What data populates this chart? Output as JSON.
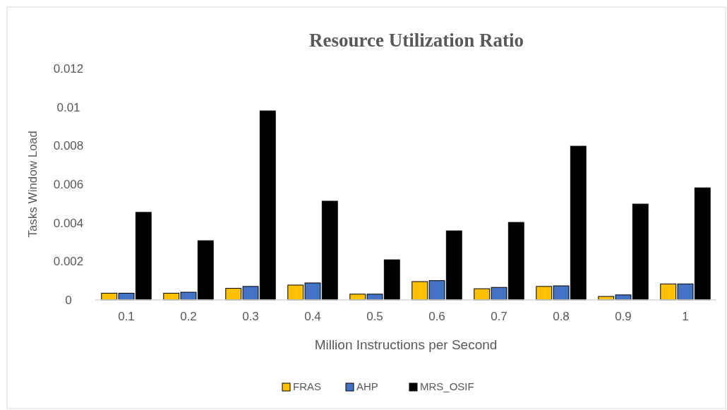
{
  "chart_data": {
    "type": "bar",
    "title": "Resource Utilization Ratio",
    "xlabel": "Million Instructions per Second",
    "ylabel": "Tasks Window Load",
    "categories": [
      "0.1",
      "0.2",
      "0.3",
      "0.4",
      "0.5",
      "0.6",
      "0.7",
      "0.8",
      "0.9",
      "1"
    ],
    "series": [
      {
        "name": "FRAS",
        "color": "#ffc000",
        "values": [
          0.00035,
          0.00035,
          0.0006,
          0.00077,
          0.0003,
          0.00095,
          0.00058,
          0.0007,
          0.00018,
          0.00083
        ]
      },
      {
        "name": "AHP",
        "color": "#4472c4",
        "values": [
          0.00035,
          0.0004,
          0.0007,
          0.00088,
          0.0003,
          0.001,
          0.00065,
          0.00073,
          0.00026,
          0.00083
        ]
      },
      {
        "name": "MRS_OSIF",
        "color": "#000000",
        "values": [
          0.00454,
          0.00307,
          0.0098,
          0.00512,
          0.00208,
          0.00358,
          0.00402,
          0.00797,
          0.00497,
          0.00581
        ]
      }
    ],
    "ylim": [
      0,
      0.012
    ],
    "yticks": [
      0,
      0.002,
      0.004,
      0.006,
      0.008,
      0.01,
      0.012
    ],
    "grid": false,
    "legend": "bottom"
  }
}
